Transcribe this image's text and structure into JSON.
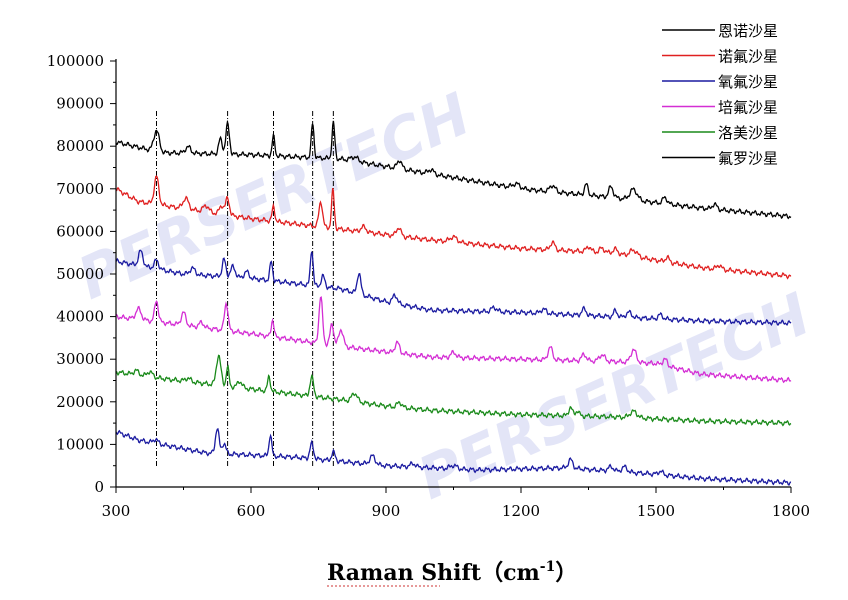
{
  "chart_data": {
    "type": "line",
    "title": "",
    "xlabel": "Raman Shift（cm",
    "xlabel_exponent": "-1",
    "xlabel_close": "）",
    "ylabel": "",
    "xlim": [
      300,
      1800
    ],
    "ylim": [
      0,
      100000
    ],
    "x_ticks": [
      300,
      600,
      900,
      1200,
      1500,
      1800
    ],
    "x_tick_labels": [
      "300",
      "600",
      "900",
      "1200",
      "1500",
      "1800"
    ],
    "y_ticks": [
      0,
      10000,
      20000,
      30000,
      40000,
      50000,
      60000,
      70000,
      80000,
      90000,
      100000
    ],
    "y_tick_labels": [
      "0",
      "10000",
      "20000",
      "30000",
      "40000",
      "50000",
      "60000",
      "70000",
      "80000",
      "90000",
      "100000"
    ],
    "grid": false,
    "legend_position": "top-right",
    "reference_lines_x": [
      390,
      548,
      650,
      737,
      783
    ],
    "series": [
      {
        "name": "恩诺沙星",
        "color": "#000000",
        "base": [
          [
            300,
            81000
          ],
          [
            400,
            78500
          ],
          [
            600,
            78000
          ],
          [
            800,
            77000
          ],
          [
            1000,
            73500
          ],
          [
            1200,
            70000
          ],
          [
            1400,
            68000
          ],
          [
            1600,
            65500
          ],
          [
            1800,
            63500
          ]
        ],
        "peaks": [
          [
            390,
            5000,
            6
          ],
          [
            460,
            1500,
            6
          ],
          [
            532,
            3500,
            4
          ],
          [
            548,
            7000,
            4
          ],
          [
            650,
            4500,
            3
          ],
          [
            737,
            8000,
            3
          ],
          [
            783,
            8500,
            3
          ],
          [
            830,
            1000,
            8
          ],
          [
            930,
            2000,
            5
          ],
          [
            1000,
            1000,
            6
          ],
          [
            1190,
            1000,
            8
          ],
          [
            1270,
            1500,
            6
          ],
          [
            1345,
            2500,
            4
          ],
          [
            1400,
            2500,
            5
          ],
          [
            1450,
            2500,
            8
          ],
          [
            1520,
            1500,
            5
          ],
          [
            1630,
            1200,
            5
          ]
        ]
      },
      {
        "name": "诺氟沙星",
        "color": "#e02020",
        "base": [
          [
            300,
            70000
          ],
          [
            350,
            67000
          ],
          [
            600,
            63000
          ],
          [
            800,
            60500
          ],
          [
            1000,
            58000
          ],
          [
            1200,
            56000
          ],
          [
            1400,
            55000
          ],
          [
            1600,
            51500
          ],
          [
            1800,
            49500
          ]
        ],
        "peaks": [
          [
            390,
            6500,
            5
          ],
          [
            455,
            2500,
            6
          ],
          [
            500,
            1500,
            6
          ],
          [
            535,
            2000,
            5
          ],
          [
            548,
            4000,
            4
          ],
          [
            650,
            3500,
            3
          ],
          [
            755,
            6000,
            4
          ],
          [
            782,
            9000,
            3
          ],
          [
            850,
            1200,
            6
          ],
          [
            928,
            2000,
            5
          ],
          [
            1050,
            1200,
            8
          ],
          [
            1270,
            1800,
            5
          ],
          [
            1350,
            1200,
            5
          ],
          [
            1380,
            1000,
            5
          ],
          [
            1410,
            1000,
            5
          ],
          [
            1450,
            1500,
            8
          ],
          [
            1525,
            1200,
            4
          ],
          [
            1640,
            1000,
            5
          ]
        ]
      },
      {
        "name": "氧氟沙星",
        "color": "#1a1aa0",
        "base": [
          [
            300,
            53000
          ],
          [
            450,
            50000
          ],
          [
            600,
            49000
          ],
          [
            800,
            46500
          ],
          [
            900,
            43500
          ],
          [
            1000,
            41500
          ],
          [
            1200,
            41000
          ],
          [
            1400,
            40000
          ],
          [
            1600,
            39000
          ],
          [
            1800,
            38500
          ]
        ],
        "peaks": [
          [
            355,
            3500,
            5
          ],
          [
            390,
            2000,
            5
          ],
          [
            470,
            1500,
            6
          ],
          [
            540,
            4000,
            4
          ],
          [
            560,
            2500,
            5
          ],
          [
            590,
            1500,
            5
          ],
          [
            645,
            4500,
            3
          ],
          [
            735,
            8500,
            3
          ],
          [
            760,
            2500,
            4
          ],
          [
            840,
            5000,
            4
          ],
          [
            920,
            2000,
            5
          ],
          [
            1140,
            1000,
            6
          ],
          [
            1250,
            1000,
            6
          ],
          [
            1340,
            1500,
            5
          ],
          [
            1410,
            1500,
            4
          ],
          [
            1440,
            1200,
            6
          ],
          [
            1510,
            1000,
            5
          ]
        ]
      },
      {
        "name": "培氟沙星",
        "color": "#d42ed4",
        "base": [
          [
            300,
            40000
          ],
          [
            450,
            38000
          ],
          [
            600,
            36000
          ],
          [
            800,
            33000
          ],
          [
            1000,
            30500
          ],
          [
            1200,
            30000
          ],
          [
            1400,
            29500
          ],
          [
            1500,
            29000
          ],
          [
            1600,
            26500
          ],
          [
            1800,
            25000
          ]
        ],
        "peaks": [
          [
            350,
            2500,
            6
          ],
          [
            390,
            5000,
            4
          ],
          [
            450,
            3000,
            5
          ],
          [
            490,
            1200,
            5
          ],
          [
            545,
            6500,
            4
          ],
          [
            648,
            4000,
            3
          ],
          [
            755,
            11000,
            4
          ],
          [
            780,
            5000,
            4
          ],
          [
            800,
            4000,
            5
          ],
          [
            925,
            2500,
            5
          ],
          [
            1050,
            1200,
            6
          ],
          [
            1265,
            3000,
            5
          ],
          [
            1340,
            1500,
            5
          ],
          [
            1380,
            1500,
            6
          ],
          [
            1450,
            3000,
            6
          ],
          [
            1520,
            1500,
            5
          ]
        ]
      },
      {
        "name": "洛美沙星",
        "color": "#1a8a1a",
        "base": [
          [
            300,
            27000
          ],
          [
            400,
            25500
          ],
          [
            600,
            23000
          ],
          [
            800,
            20500
          ],
          [
            900,
            19000
          ],
          [
            1000,
            18000
          ],
          [
            1200,
            17000
          ],
          [
            1400,
            16500
          ],
          [
            1600,
            15500
          ],
          [
            1800,
            15000
          ]
        ],
        "peaks": [
          [
            345,
            1000,
            6
          ],
          [
            375,
            1200,
            6
          ],
          [
            460,
            800,
            6
          ],
          [
            528,
            7000,
            5
          ],
          [
            548,
            4500,
            3
          ],
          [
            575,
            1500,
            5
          ],
          [
            640,
            3500,
            3
          ],
          [
            735,
            4500,
            4
          ],
          [
            830,
            2000,
            6
          ],
          [
            930,
            1200,
            5
          ],
          [
            1310,
            2000,
            4
          ],
          [
            1325,
            1200,
            4
          ],
          [
            1450,
            1500,
            8
          ]
        ]
      },
      {
        "name": "氟罗沙星",
        "color": "#000000",
        "lineColor": "#1a1aa0",
        "base": [
          [
            300,
            13000
          ],
          [
            350,
            11000
          ],
          [
            400,
            10000
          ],
          [
            500,
            8000
          ],
          [
            700,
            7000
          ],
          [
            900,
            5000
          ],
          [
            1100,
            4000
          ],
          [
            1300,
            4500
          ],
          [
            1500,
            3000
          ],
          [
            1600,
            2000
          ],
          [
            1800,
            1000
          ]
        ],
        "peaks": [
          [
            388,
            1000,
            5
          ],
          [
            525,
            6000,
            4
          ],
          [
            540,
            2500,
            4
          ],
          [
            643,
            5000,
            3
          ],
          [
            735,
            3500,
            4
          ],
          [
            783,
            2000,
            4
          ],
          [
            870,
            2000,
            6
          ],
          [
            960,
            800,
            6
          ],
          [
            1050,
            800,
            8
          ],
          [
            1310,
            2000,
            5
          ],
          [
            1400,
            1000,
            6
          ],
          [
            1430,
            1200,
            6
          ],
          [
            1510,
            800,
            5
          ]
        ]
      }
    ],
    "watermark_text": "PERSERTECH"
  },
  "colors": {
    "watermark_blue": "#aab0e8",
    "watermark_orange": "#f0c070",
    "reference_line": "#000000",
    "axis": "#000000"
  }
}
